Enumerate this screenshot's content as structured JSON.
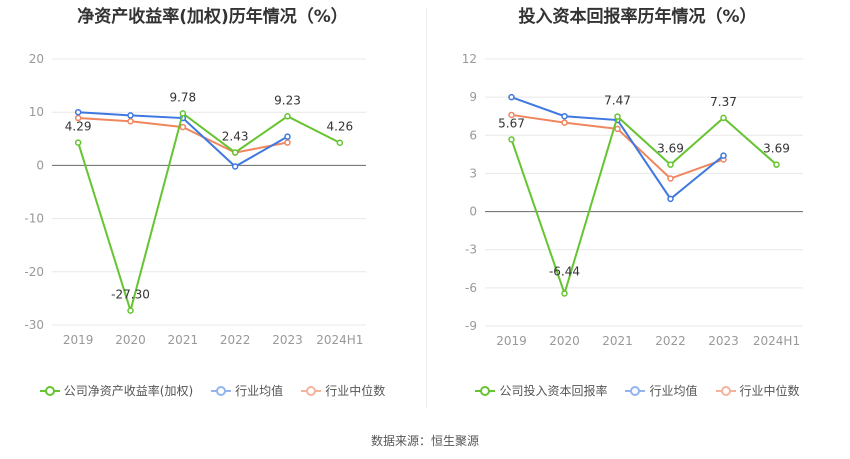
{
  "source_label": "数据来源：恒生聚源",
  "colors": {
    "company": "#66c431",
    "avg": "#3e78e0",
    "median": "#f0865e",
    "axis": "#999999",
    "grid": "#e8e8e8"
  },
  "chart_data": [
    {
      "type": "line",
      "title": "净资产收益率(加权)历年情况（%）",
      "categories": [
        "2019",
        "2020",
        "2021",
        "2022",
        "2023",
        "2024H1"
      ],
      "ylim": [
        -30,
        20
      ],
      "yticks": [
        20,
        10,
        0,
        -10,
        -20,
        -30
      ],
      "grid": true,
      "legend_position": "bottom",
      "series": [
        {
          "name": "公司净资产收益率(加权)",
          "key": "company",
          "values": [
            4.29,
            -27.3,
            9.78,
            2.43,
            9.23,
            4.26
          ],
          "labels": [
            "4.29",
            "-27.30",
            "9.78",
            "2.43",
            "9.23",
            "4.26"
          ]
        },
        {
          "name": "行业均值",
          "key": "avg",
          "values": [
            10.0,
            9.4,
            8.9,
            -0.2,
            5.4,
            null
          ]
        },
        {
          "name": "行业中位数",
          "key": "median",
          "values": [
            8.9,
            8.3,
            7.2,
            2.4,
            4.3,
            null
          ]
        }
      ]
    },
    {
      "type": "line",
      "title": "投入资本回报率历年情况（%）",
      "categories": [
        "2019",
        "2020",
        "2021",
        "2022",
        "2023",
        "2024H1"
      ],
      "ylim": [
        -9,
        12
      ],
      "yticks": [
        12,
        9,
        6,
        3,
        0,
        -3,
        -6,
        -9
      ],
      "grid": true,
      "legend_position": "bottom",
      "series": [
        {
          "name": "公司投入资本回报率",
          "key": "company",
          "values": [
            5.67,
            -6.44,
            7.47,
            3.69,
            7.37,
            3.69
          ],
          "labels": [
            "5.67",
            "-6.44",
            "7.47",
            "3.69",
            "7.37",
            "3.69"
          ]
        },
        {
          "name": "行业均值",
          "key": "avg",
          "values": [
            9.0,
            7.5,
            7.2,
            1.0,
            4.4,
            null
          ]
        },
        {
          "name": "行业中位数",
          "key": "median",
          "values": [
            7.6,
            7.0,
            6.5,
            2.6,
            4.1,
            null
          ]
        }
      ]
    }
  ]
}
